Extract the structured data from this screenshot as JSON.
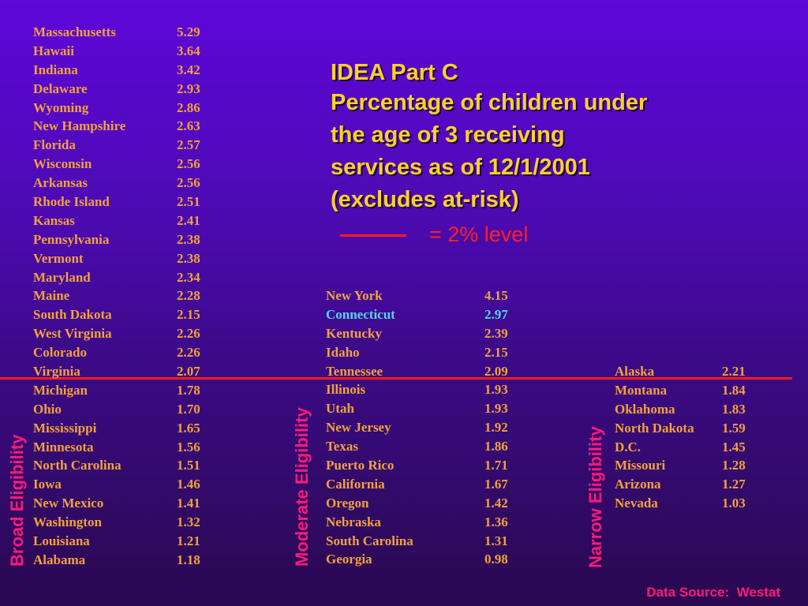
{
  "title": {
    "line1": "IDEA Part C",
    "line2": "Percentage of children under",
    "line3": "the age of 3 receiving",
    "line4": "services as of 12/1/2001",
    "line5": "(excludes at-risk)"
  },
  "legend": {
    "text": "= 2% level",
    "color": "#ff2020"
  },
  "labels": {
    "broad": "Broad Eligibility",
    "moderate": "Moderate Eligibility",
    "narrow": "Narrow Eligibility"
  },
  "source": "Data Source:  Westat",
  "colors": {
    "state_text": "#f2a23a",
    "highlight_text": "#4fd8e0",
    "title_text": "#ffd02a",
    "category_label": "#ff1a78",
    "reference_line": "#ff1a1a"
  },
  "broad": [
    {
      "state": "Massachusetts",
      "value": "5.29"
    },
    {
      "state": "Hawaii",
      "value": "3.64"
    },
    {
      "state": "Indiana",
      "value": "3.42"
    },
    {
      "state": "Delaware",
      "value": "2.93"
    },
    {
      "state": "Wyoming",
      "value": "2.86"
    },
    {
      "state": "New Hampshire",
      "value": "2.63"
    },
    {
      "state": "Florida",
      "value": "2.57"
    },
    {
      "state": "Wisconsin",
      "value": "2.56"
    },
    {
      "state": "Arkansas",
      "value": "2.56"
    },
    {
      "state": "Rhode Island",
      "value": "2.51"
    },
    {
      "state": "Kansas",
      "value": "2.41"
    },
    {
      "state": "Pennsylvania",
      "value": "2.38"
    },
    {
      "state": "Vermont",
      "value": "2.38"
    },
    {
      "state": "Maryland",
      "value": "2.34"
    },
    {
      "state": "Maine",
      "value": "2.28"
    },
    {
      "state": "South Dakota",
      "value": "2.15"
    },
    {
      "state": "West Virginia",
      "value": "2.26"
    },
    {
      "state": "Colorado",
      "value": "2.26"
    },
    {
      "state": "Virginia",
      "value": "2.07"
    },
    {
      "state": "Michigan",
      "value": "1.78"
    },
    {
      "state": "Ohio",
      "value": "1.70"
    },
    {
      "state": "Mississippi",
      "value": "1.65"
    },
    {
      "state": "Minnesota",
      "value": "1.56"
    },
    {
      "state": "North Carolina",
      "value": "1.51"
    },
    {
      "state": "Iowa",
      "value": "1.46"
    },
    {
      "state": "New Mexico",
      "value": "1.41"
    },
    {
      "state": "Washington",
      "value": "1.32"
    },
    {
      "state": "Louisiana",
      "value": "1.21"
    },
    {
      "state": "Alabama",
      "value": "1.18"
    }
  ],
  "moderate": [
    {
      "state": "New York",
      "value": "4.15"
    },
    {
      "state": "Connecticut",
      "value": "2.97",
      "highlight": true
    },
    {
      "state": "Kentucky",
      "value": "2.39"
    },
    {
      "state": "Idaho",
      "value": "2.15"
    },
    {
      "state": "Tennessee",
      "value": "2.09"
    },
    {
      "state": "Illinois",
      "value": "1.93"
    },
    {
      "state": "Utah",
      "value": "1.93"
    },
    {
      "state": "New Jersey",
      "value": "1.92"
    },
    {
      "state": "Texas",
      "value": "1.86"
    },
    {
      "state": "Puerto Rico",
      "value": "1.71"
    },
    {
      "state": "California",
      "value": "1.67"
    },
    {
      "state": "Oregon",
      "value": "1.42"
    },
    {
      "state": "Nebraska",
      "value": "1.36"
    },
    {
      "state": "South Carolina",
      "value": "1.31"
    },
    {
      "state": "Georgia",
      "value": "0.98"
    }
  ],
  "narrow": [
    {
      "state": "Alaska",
      "value": "2.21"
    },
    {
      "state": "Montana",
      "value": "1.84"
    },
    {
      "state": "Oklahoma",
      "value": "1.83"
    },
    {
      "state": "North Dakota",
      "value": "1.59"
    },
    {
      "state": "D.C.",
      "value": "1.45"
    },
    {
      "state": "Missouri",
      "value": "1.28"
    },
    {
      "state": "Arizona",
      "value": "1.27"
    },
    {
      "state": "Nevada",
      "value": "1.03"
    }
  ]
}
